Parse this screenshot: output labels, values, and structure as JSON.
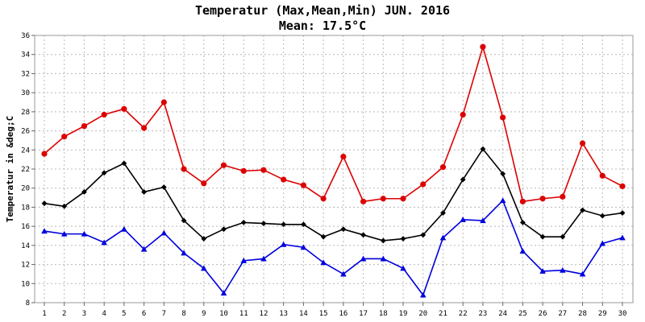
{
  "chart_data": {
    "type": "line",
    "title": "Temperatur (Max,Mean,Min) JUN. 2016",
    "subtitle": "Mean: 17.5°C",
    "xlabel": "",
    "ylabel": "Temperatur in &deg;C",
    "xlim": [
      1,
      30
    ],
    "ylim": [
      8,
      36
    ],
    "y_ticks": [
      8,
      10,
      12,
      14,
      16,
      18,
      20,
      22,
      24,
      26,
      28,
      30,
      32,
      34,
      36
    ],
    "grid": true,
    "legend": "none",
    "x": [
      1,
      2,
      3,
      4,
      5,
      6,
      7,
      8,
      9,
      10,
      11,
      12,
      13,
      14,
      15,
      16,
      17,
      18,
      19,
      20,
      21,
      22,
      23,
      24,
      25,
      26,
      27,
      28,
      29,
      30
    ],
    "series": [
      {
        "color": "#dd0000",
        "marker": "circle",
        "values": [
          23.6,
          25.4,
          26.5,
          27.7,
          28.3,
          26.3,
          29.0,
          22.0,
          20.5,
          22.4,
          21.8,
          21.9,
          20.9,
          20.3,
          18.9,
          23.3,
          18.6,
          18.9,
          18.9,
          20.4,
          22.2,
          27.7,
          34.8,
          27.4,
          18.6,
          18.9,
          19.1,
          24.7,
          21.3,
          20.2
        ]
      },
      {
        "color": "#000000",
        "marker": "diamond",
        "values": [
          18.4,
          18.1,
          19.6,
          21.6,
          22.6,
          19.6,
          20.1,
          16.6,
          14.7,
          15.7,
          16.4,
          16.3,
          16.2,
          16.2,
          14.9,
          15.7,
          15.1,
          14.5,
          14.7,
          15.1,
          17.4,
          20.9,
          24.1,
          21.5,
          16.4,
          14.9,
          14.9,
          17.7,
          17.1,
          17.4
        ]
      },
      {
        "color": "#0000dd",
        "marker": "triangle",
        "values": [
          15.5,
          15.2,
          15.2,
          14.3,
          15.7,
          13.6,
          15.3,
          13.2,
          11.6,
          9.0,
          12.4,
          12.6,
          14.1,
          13.8,
          12.2,
          11.0,
          12.6,
          12.6,
          11.6,
          8.8,
          14.8,
          16.7,
          16.6,
          18.7,
          13.4,
          11.3,
          11.4,
          11.0,
          14.2,
          14.8
        ]
      }
    ]
  }
}
